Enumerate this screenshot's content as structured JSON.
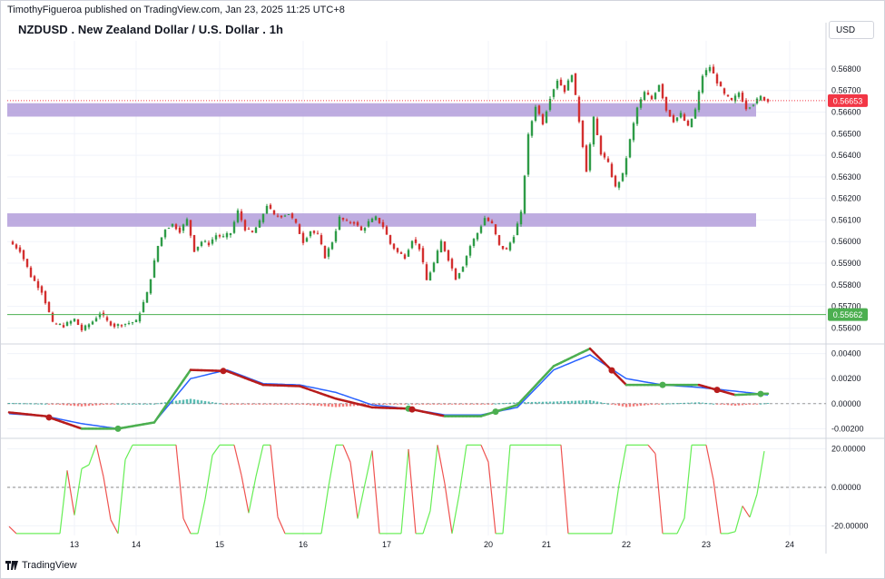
{
  "header": {
    "publisher": "TimothyFigueroa published on TradingView.com, Jan 23, 2025 11:25 UTC+8",
    "symbol_title": "NZDUSD . New Zealand Dollar / U.S. Dollar . 1h",
    "currency_button": "USD"
  },
  "footer": {
    "brand": "TradingView",
    "logo_icon": "tradingview-logo-icon"
  },
  "colors": {
    "bull": "#26a69a",
    "bull_candle": "#2e9b47",
    "bear": "#d32f2f",
    "zone": "#b39ddb",
    "macd_blue": "#2962ff",
    "macd_green": "#4caf50",
    "macd_dark_red": "#b71c1c",
    "osc_green": "#66ee55",
    "osc_red": "#ef5350",
    "support_line": "#4caf50",
    "current_price_bg": "#f23645"
  },
  "chart_data": [
    {
      "type": "candlestick",
      "name": "price",
      "x_tick_labels": [
        "13",
        "14",
        "15",
        "16",
        "17",
        "20",
        "21",
        "22",
        "23",
        "24"
      ],
      "y_tick_labels": [
        "0.56800",
        "0.56700",
        "0.56600",
        "0.56500",
        "0.56400",
        "0.56300",
        "0.56200",
        "0.56100",
        "0.56000",
        "0.55900",
        "0.55800",
        "0.55700",
        "0.55600"
      ],
      "ylim": [
        0.5553,
        0.5693
      ],
      "current_price": "0.56653",
      "support_price": "0.55662",
      "zones": [
        [
          0.566,
          0.5662
        ],
        [
          0.5609,
          0.5611
        ]
      ],
      "path": [
        [
          0,
          0.56
        ],
        [
          3,
          0.5596
        ],
        [
          6,
          0.5584
        ],
        [
          9,
          0.5577
        ],
        [
          12,
          0.5562
        ],
        [
          15,
          0.5561
        ],
        [
          18,
          0.5564
        ],
        [
          20,
          0.5559
        ],
        [
          23,
          0.5563
        ],
        [
          25,
          0.5567
        ],
        [
          27,
          0.5563
        ],
        [
          29,
          0.5561
        ],
        [
          32,
          0.5562
        ],
        [
          35,
          0.5563
        ],
        [
          38,
          0.5576
        ],
        [
          41,
          0.5598
        ],
        [
          43,
          0.5606
        ],
        [
          45,
          0.5608
        ],
        [
          47,
          0.5605
        ],
        [
          49,
          0.561
        ],
        [
          51,
          0.5596
        ],
        [
          53,
          0.56
        ],
        [
          55,
          0.5599
        ],
        [
          57,
          0.5603
        ],
        [
          59,
          0.5602
        ],
        [
          61,
          0.5604
        ],
        [
          63,
          0.5614
        ],
        [
          65,
          0.5606
        ],
        [
          67,
          0.5604
        ],
        [
          69,
          0.5609
        ],
        [
          71,
          0.5617
        ],
        [
          73,
          0.5612
        ],
        [
          75,
          0.5612
        ],
        [
          77,
          0.5613
        ],
        [
          79,
          0.5608
        ],
        [
          81,
          0.56
        ],
        [
          83,
          0.5605
        ],
        [
          85,
          0.5603
        ],
        [
          87,
          0.5593
        ],
        [
          89,
          0.56
        ],
        [
          91,
          0.5611
        ],
        [
          93,
          0.5609
        ],
        [
          95,
          0.5609
        ],
        [
          97,
          0.5605
        ],
        [
          99,
          0.5609
        ],
        [
          101,
          0.5611
        ],
        [
          103,
          0.5607
        ],
        [
          105,
          0.5599
        ],
        [
          107,
          0.5595
        ],
        [
          109,
          0.5593
        ],
        [
          111,
          0.5601
        ],
        [
          113,
          0.5597
        ],
        [
          115,
          0.5582
        ],
        [
          117,
          0.559
        ],
        [
          119,
          0.56
        ],
        [
          121,
          0.5592
        ],
        [
          123,
          0.5583
        ],
        [
          125,
          0.5589
        ],
        [
          127,
          0.5598
        ],
        [
          129,
          0.5604
        ],
        [
          131,
          0.5611
        ],
        [
          133,
          0.5608
        ],
        [
          135,
          0.5598
        ],
        [
          137,
          0.5596
        ],
        [
          139,
          0.5603
        ],
        [
          141,
          0.5613
        ],
        [
          143,
          0.5649
        ],
        [
          145,
          0.5663
        ],
        [
          147,
          0.5655
        ],
        [
          149,
          0.5667
        ],
        [
          151,
          0.5675
        ],
        [
          153,
          0.567
        ],
        [
          155,
          0.5678
        ],
        [
          157,
          0.5656
        ],
        [
          159,
          0.5633
        ],
        [
          161,
          0.5657
        ],
        [
          163,
          0.5641
        ],
        [
          165,
          0.5636
        ],
        [
          167,
          0.5625
        ],
        [
          169,
          0.5631
        ],
        [
          171,
          0.5647
        ],
        [
          173,
          0.5662
        ],
        [
          175,
          0.5669
        ],
        [
          177,
          0.5666
        ],
        [
          179,
          0.5673
        ],
        [
          181,
          0.5661
        ],
        [
          183,
          0.5656
        ],
        [
          185,
          0.5659
        ],
        [
          187,
          0.5653
        ],
        [
          189,
          0.5661
        ],
        [
          191,
          0.5677
        ],
        [
          193,
          0.5681
        ],
        [
          195,
          0.5674
        ],
        [
          197,
          0.5668
        ],
        [
          199,
          0.5665
        ],
        [
          201,
          0.5669
        ],
        [
          203,
          0.5662
        ],
        [
          205,
          0.5664
        ],
        [
          207,
          0.5667
        ],
        [
          209,
          0.5665
        ]
      ]
    },
    {
      "type": "line",
      "name": "macd",
      "y_tick_labels": [
        "0.00400",
        "0.00200",
        "0.00000",
        "-0.00200"
      ],
      "ylim": [
        -0.0027,
        0.0047
      ],
      "series": [
        {
          "values": [
            [
              0,
              -0.0007
            ],
            [
              10,
              -0.001
            ],
            [
              20,
              -0.002
            ],
            [
              30,
              -0.002
            ],
            [
              40,
              -0.0015
            ],
            [
              50,
              0.0027
            ],
            [
              60,
              0.0026
            ],
            [
              70,
              0.0015
            ],
            [
              80,
              0.0014
            ],
            [
              90,
              0.0004
            ],
            [
              100,
              -0.0003
            ],
            [
              110,
              -0.0004
            ],
            [
              120,
              -0.001
            ],
            [
              130,
              -0.001
            ],
            [
              140,
              -0.0001
            ],
            [
              150,
              0.003
            ],
            [
              160,
              0.0044
            ],
            [
              170,
              0.0015
            ],
            [
              180,
              0.0015
            ],
            [
              190,
              0.0015
            ],
            [
              200,
              0.0007
            ],
            [
              209,
              0.0008
            ]
          ]
        },
        {
          "values": [
            [
              0,
              -0.0008
            ],
            [
              10,
              -0.001
            ],
            [
              20,
              -0.0016
            ],
            [
              30,
              -0.002
            ],
            [
              40,
              -0.0015
            ],
            [
              50,
              0.002
            ],
            [
              60,
              0.0027
            ],
            [
              70,
              0.0016
            ],
            [
              80,
              0.0015
            ],
            [
              90,
              0.0009
            ],
            [
              100,
              -0.0001
            ],
            [
              110,
              -0.0004
            ],
            [
              120,
              -0.0009
            ],
            [
              130,
              -0.0009
            ],
            [
              140,
              -0.0003
            ],
            [
              150,
              0.0027
            ],
            [
              160,
              0.0039
            ],
            [
              170,
              0.002
            ],
            [
              180,
              0.0015
            ],
            [
              190,
              0.0013
            ],
            [
              200,
              0.001
            ],
            [
              209,
              0.0007
            ]
          ]
        }
      ]
    },
    {
      "type": "line",
      "name": "oscillator",
      "y_tick_labels": [
        "20.00000",
        "0.00000",
        "-20.00000"
      ],
      "ylim": [
        -25,
        25
      ]
    }
  ]
}
